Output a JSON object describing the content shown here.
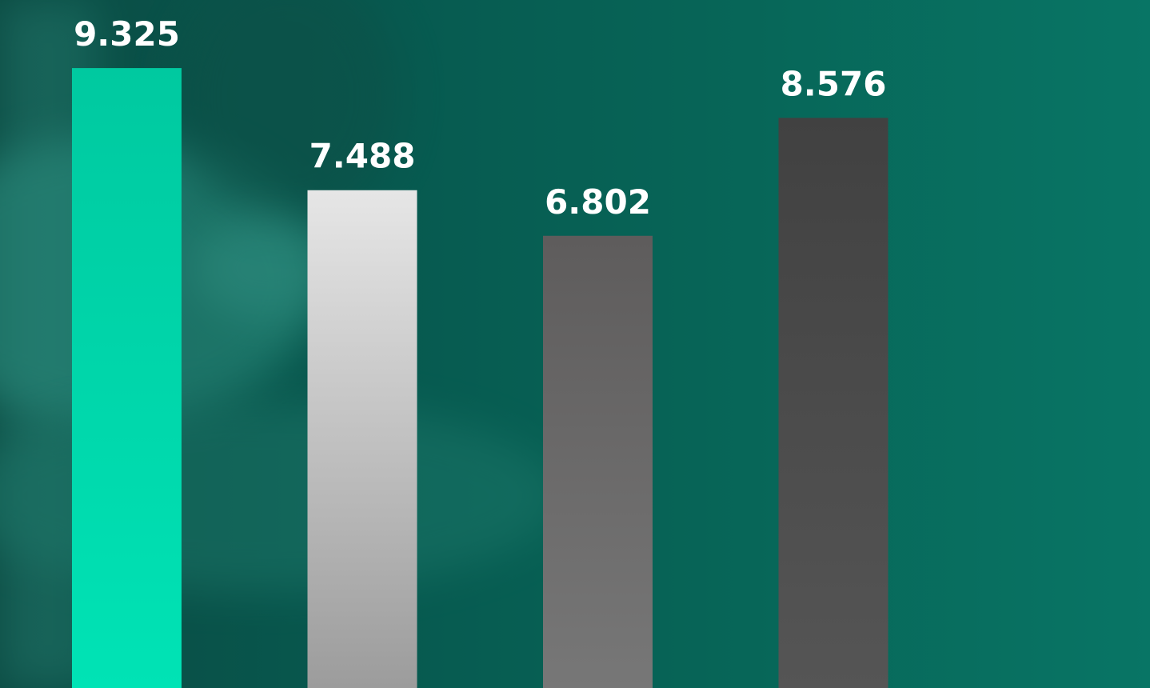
{
  "chart_data": {
    "type": "bar",
    "categories": [
      "",
      "",
      "",
      ""
    ],
    "values": [
      9.325,
      7.488,
      6.802,
      8.576
    ],
    "value_labels": [
      "9.325",
      "7.488",
      "6.802",
      "8.576"
    ],
    "title": "",
    "xlabel": "",
    "ylabel": "",
    "grid": false,
    "legend": "none",
    "colors": [
      [
        "#00c9a0",
        "#00e3b5"
      ],
      [
        "#e6e6e6",
        "#9c9c9c"
      ],
      [
        "#5e5c5c",
        "#777777"
      ],
      [
        "#414141",
        "#555555"
      ]
    ],
    "background": {
      "start": "#0b4b43",
      "end": "#087565"
    }
  }
}
